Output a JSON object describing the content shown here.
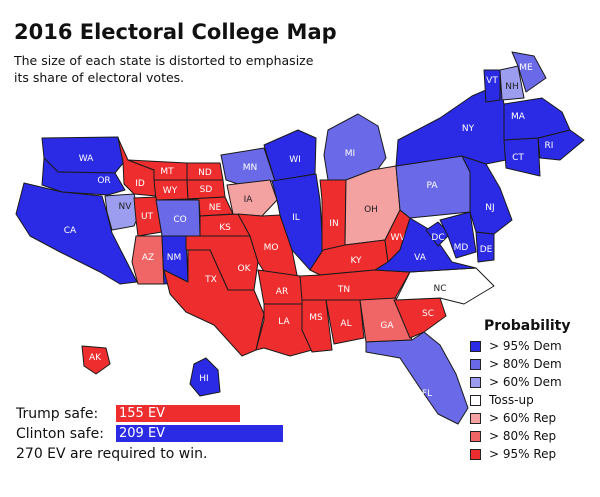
{
  "title": "2016 Electoral College Map",
  "subtitle": "The size of each state is distorted to emphasize its share of electoral votes.",
  "colors": {
    "dem95": "#2b2be6",
    "dem80": "#6a6ae8",
    "dem60": "#9d9df0",
    "tossup": "#ffffff",
    "rep60": "#f4a1a1",
    "rep80": "#f06666",
    "rep95": "#ee2e2e",
    "trump_bar": "#ee2e2e",
    "clinton_bar": "#2b2be6"
  },
  "states": [
    {
      "id": "WA",
      "label": "WA",
      "category": "dem95"
    },
    {
      "id": "OR",
      "label": "OR",
      "category": "dem95"
    },
    {
      "id": "CA",
      "label": "CA",
      "category": "dem95"
    },
    {
      "id": "NV",
      "label": "NV",
      "category": "dem60"
    },
    {
      "id": "ID",
      "label": "ID",
      "category": "rep95"
    },
    {
      "id": "MT",
      "label": "MT",
      "category": "rep95"
    },
    {
      "id": "WY",
      "label": "WY",
      "category": "rep95"
    },
    {
      "id": "UT",
      "label": "UT",
      "category": "rep95"
    },
    {
      "id": "CO",
      "label": "CO",
      "category": "dem80"
    },
    {
      "id": "AZ",
      "label": "AZ",
      "category": "rep80"
    },
    {
      "id": "NM",
      "label": "NM",
      "category": "dem95"
    },
    {
      "id": "ND",
      "label": "ND",
      "category": "rep95"
    },
    {
      "id": "SD",
      "label": "SD",
      "category": "rep95"
    },
    {
      "id": "NE",
      "label": "NE",
      "category": "rep95"
    },
    {
      "id": "KS",
      "label": "KS",
      "category": "rep95"
    },
    {
      "id": "OK",
      "label": "OK",
      "category": "rep95"
    },
    {
      "id": "TX",
      "label": "TX",
      "category": "rep95"
    },
    {
      "id": "MN",
      "label": "MN",
      "category": "dem80"
    },
    {
      "id": "IA",
      "label": "IA",
      "category": "rep60"
    },
    {
      "id": "MO",
      "label": "MO",
      "category": "rep95"
    },
    {
      "id": "AR",
      "label": "AR",
      "category": "rep95"
    },
    {
      "id": "LA",
      "label": "LA",
      "category": "rep95"
    },
    {
      "id": "WI",
      "label": "WI",
      "category": "dem95"
    },
    {
      "id": "IL",
      "label": "IL",
      "category": "dem95"
    },
    {
      "id": "MI",
      "label": "MI",
      "category": "dem80"
    },
    {
      "id": "IN",
      "label": "IN",
      "category": "rep95"
    },
    {
      "id": "OH",
      "label": "OH",
      "category": "rep60"
    },
    {
      "id": "KY",
      "label": "KY",
      "category": "rep95"
    },
    {
      "id": "TN",
      "label": "TN",
      "category": "rep95"
    },
    {
      "id": "MS",
      "label": "MS",
      "category": "rep95"
    },
    {
      "id": "AL",
      "label": "AL",
      "category": "rep95"
    },
    {
      "id": "GA",
      "label": "GA",
      "category": "rep80"
    },
    {
      "id": "SC",
      "label": "SC",
      "category": "rep95"
    },
    {
      "id": "NC",
      "label": "NC",
      "category": "tossup"
    },
    {
      "id": "FL",
      "label": "FL",
      "category": "dem80"
    },
    {
      "id": "WV",
      "label": "WV",
      "category": "rep95"
    },
    {
      "id": "VA",
      "label": "VA",
      "category": "dem95"
    },
    {
      "id": "DC",
      "label": "DC",
      "category": "dem95"
    },
    {
      "id": "MD",
      "label": "MD",
      "category": "dem95"
    },
    {
      "id": "DE",
      "label": "DE",
      "category": "dem95"
    },
    {
      "id": "PA",
      "label": "PA",
      "category": "dem80"
    },
    {
      "id": "NJ",
      "label": "NJ",
      "category": "dem95"
    },
    {
      "id": "NY",
      "label": "NY",
      "category": "dem95"
    },
    {
      "id": "CT",
      "label": "CT",
      "category": "dem95"
    },
    {
      "id": "RI",
      "label": "RI",
      "category": "dem95"
    },
    {
      "id": "MA",
      "label": "MA",
      "category": "dem95"
    },
    {
      "id": "VT",
      "label": "VT",
      "category": "dem95"
    },
    {
      "id": "NH",
      "label": "NH",
      "category": "dem60"
    },
    {
      "id": "ME",
      "label": "ME",
      "category": "dem80"
    },
    {
      "id": "AK",
      "label": "AK",
      "category": "rep95"
    },
    {
      "id": "HI",
      "label": "HI",
      "category": "dem95"
    }
  ],
  "legend": {
    "title": "Probability",
    "items": [
      {
        "label": "> 95% Dem",
        "category": "dem95"
      },
      {
        "label": "> 80% Dem",
        "category": "dem80"
      },
      {
        "label": "> 60% Dem",
        "category": "dem60"
      },
      {
        "label": "Toss-up",
        "category": "tossup"
      },
      {
        "label": "> 60% Rep",
        "category": "rep60"
      },
      {
        "label": "> 80% Rep",
        "category": "rep80"
      },
      {
        "label": "> 95% Rep",
        "category": "rep95"
      }
    ]
  },
  "totals": {
    "trump_label": "Trump safe:",
    "trump_value": "155 EV",
    "trump_ev": 155,
    "clinton_label": "Clinton safe:",
    "clinton_value": "209 EV",
    "clinton_ev": 209,
    "required": "270 EV are required to win."
  }
}
